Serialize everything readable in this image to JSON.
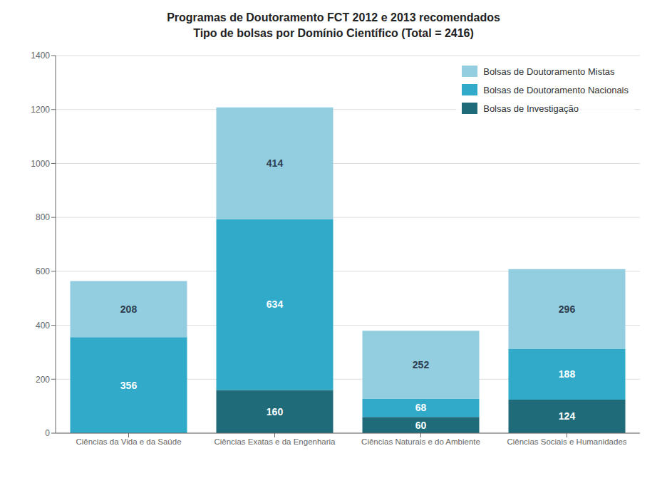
{
  "chart_data": {
    "type": "bar",
    "stacked": true,
    "title": "Programas de Doutoramento FCT 2012 e 2013 recomendados",
    "subtitle": "Tipo de bolsas por Domínio Científico (Total = 2416)",
    "categories": [
      "Ciências da Vida e da Saúde",
      "Ciências Exatas e da Engenharia",
      "Ciências Naturais e do Ambiente",
      "Ciências Sociais e Humanidades"
    ],
    "series": [
      {
        "name": "Bolsas de Investigação",
        "color": "#1f6b7a",
        "values": [
          0,
          160,
          60,
          124
        ]
      },
      {
        "name": "Bolsas de Doutoramento Nacionais",
        "color": "#31a9c9",
        "values": [
          356,
          634,
          68,
          188
        ]
      },
      {
        "name": "Bolsas de Doutoramento Mistas",
        "color": "#92cee0",
        "values": [
          208,
          414,
          252,
          296
        ]
      }
    ],
    "ylim": [
      0,
      1400
    ],
    "yticks": [
      0,
      200,
      400,
      600,
      800,
      1000,
      1200,
      1400
    ],
    "grid": true,
    "legend": "upper right",
    "data_labels": true
  }
}
